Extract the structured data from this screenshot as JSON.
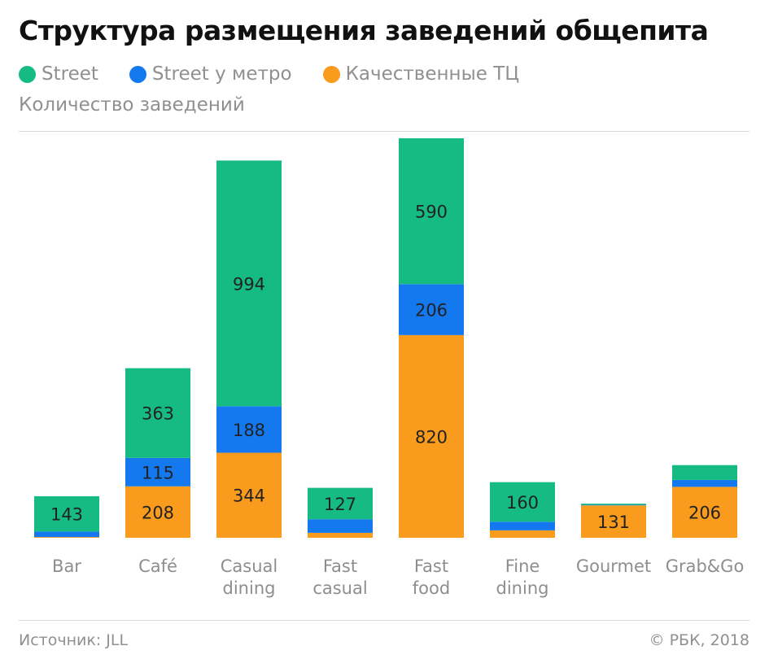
{
  "title": "Структура размещения заведений общепита",
  "subtitle": "Количество заведений",
  "legend": [
    {
      "label": "Street",
      "color": "#16bb84"
    },
    {
      "label": "Street у метро",
      "color": "#1479ef"
    },
    {
      "label": "Качественные ТЦ",
      "color": "#f99b1c"
    }
  ],
  "footer": {
    "source": "Источник: JLL",
    "copyright": "© РБК, 2018"
  },
  "chart_data": {
    "type": "bar",
    "stacked": true,
    "categories": [
      [
        "Bar"
      ],
      [
        "Café"
      ],
      [
        "Casual",
        "dining"
      ],
      [
        "Fast",
        "casual"
      ],
      [
        "Fast",
        "food"
      ],
      [
        "Fine",
        "dining"
      ],
      [
        "Gourmet"
      ],
      [
        "Grab&Go"
      ]
    ],
    "series": [
      {
        "name": "Качественные ТЦ",
        "color": "#f99b1c",
        "values": [
          3,
          208,
          344,
          20,
          820,
          30,
          131,
          206
        ],
        "labels": [
          "",
          "208",
          "344",
          "",
          "820",
          "",
          "131",
          "206"
        ]
      },
      {
        "name": "Street у метро",
        "color": "#1479ef",
        "values": [
          22,
          115,
          188,
          55,
          206,
          35,
          2,
          28
        ],
        "labels": [
          "",
          "115",
          "188",
          "",
          "206",
          "",
          "",
          ""
        ]
      },
      {
        "name": "Street",
        "color": "#16bb84",
        "values": [
          143,
          363,
          994,
          127,
          590,
          160,
          5,
          60
        ],
        "labels": [
          "143",
          "363",
          "994",
          "127",
          "590",
          "160",
          "",
          ""
        ]
      }
    ],
    "ylim": [
      0,
      1616
    ],
    "grid": false,
    "legend_position": "top-left"
  }
}
